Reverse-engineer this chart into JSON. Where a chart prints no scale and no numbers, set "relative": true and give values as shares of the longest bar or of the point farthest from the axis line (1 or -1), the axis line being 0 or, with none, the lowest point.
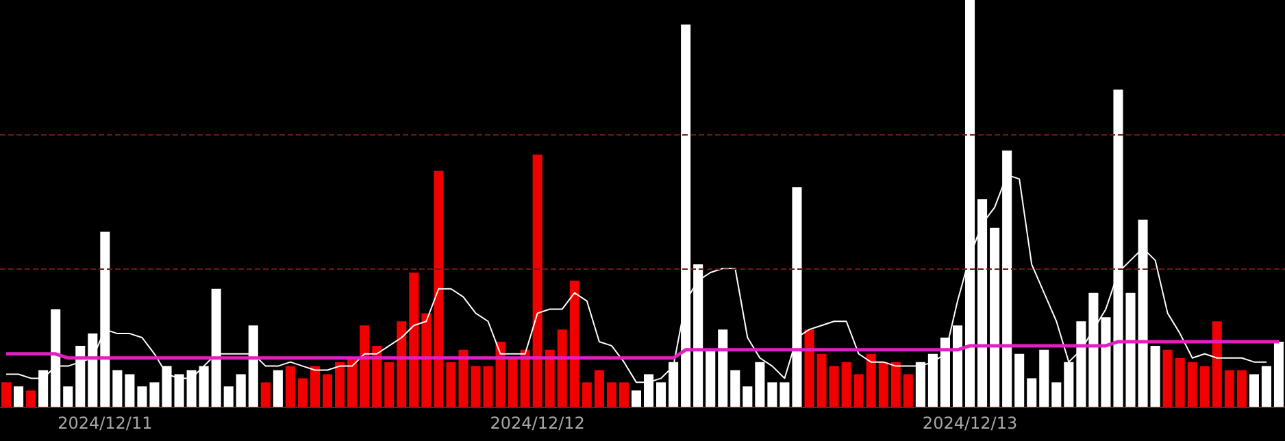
{
  "chart_data": {
    "type": "bar",
    "relative": true,
    "categories": [
      null,
      null,
      null,
      null,
      null,
      null,
      null,
      null,
      "2024/12/11",
      null,
      null,
      null,
      null,
      null,
      null,
      null,
      null,
      null,
      null,
      null,
      null,
      null,
      null,
      null,
      null,
      null,
      null,
      null,
      null,
      null,
      null,
      null,
      null,
      null,
      null,
      null,
      null,
      null,
      null,
      null,
      null,
      null,
      null,
      "2024/12/12",
      null,
      null,
      null,
      null,
      null,
      null,
      null,
      null,
      null,
      null,
      null,
      null,
      null,
      null,
      null,
      null,
      null,
      null,
      null,
      null,
      null,
      null,
      null,
      null,
      null,
      null,
      null,
      null,
      null,
      null,
      null,
      null,
      null,
      null,
      "2024/12/13",
      null,
      null,
      null,
      null,
      null,
      null,
      null,
      null,
      null,
      null,
      null,
      null,
      null,
      null,
      null,
      null,
      null,
      null,
      null,
      null,
      null,
      null,
      null,
      null,
      null
    ],
    "series": [
      {
        "values": [
          0.06,
          0.05,
          0.04,
          0.09,
          0.24,
          0.05,
          0.15,
          0.18,
          0.43,
          0.09,
          0.08,
          0.05,
          0.06,
          0.1,
          0.08,
          0.09,
          0.1,
          0.29,
          0.05,
          0.08,
          0.2,
          0.06,
          0.09,
          0.1,
          0.07,
          0.1,
          0.08,
          0.11,
          0.12,
          0.2,
          0.15,
          0.11,
          0.21,
          0.33,
          0.23,
          0.58,
          0.11,
          0.14,
          0.1,
          0.1,
          0.16,
          0.12,
          0.14,
          0.62,
          0.14,
          0.19,
          0.31,
          0.06,
          0.09,
          0.06,
          0.06,
          0.04,
          0.08,
          0.06,
          0.11,
          0.94,
          0.35,
          0.14,
          0.19,
          0.09,
          0.05,
          0.11,
          0.06,
          0.06,
          0.54,
          0.19,
          0.13,
          0.1,
          0.11,
          0.08,
          0.13,
          0.11,
          0.11,
          0.08,
          0.11,
          0.13,
          0.17,
          0.2,
          1,
          0.51,
          0.44,
          0.63,
          0.13,
          0.07,
          0.14,
          0.06,
          0.11,
          0.21,
          0.28,
          0.22,
          0.78,
          0.28,
          0.46,
          0.15,
          0.14,
          0.12,
          0.11,
          0.1,
          0.21,
          0.09,
          0.09,
          0.08,
          0.1,
          0.16
        ],
        "colors": [
          "#f00000",
          "#ffffff",
          "#f00000",
          "#ffffff",
          "#ffffff",
          "#ffffff",
          "#ffffff",
          "#ffffff",
          "#ffffff",
          "#ffffff",
          "#ffffff",
          "#ffffff",
          "#ffffff",
          "#ffffff",
          "#ffffff",
          "#ffffff",
          "#ffffff",
          "#ffffff",
          "#ffffff",
          "#ffffff",
          "#ffffff",
          "#f00000",
          "#ffffff",
          "#f00000",
          "#f00000",
          "#f00000",
          "#f00000",
          "#f00000",
          "#f00000",
          "#f00000",
          "#f00000",
          "#f00000",
          "#f00000",
          "#f00000",
          "#f00000",
          "#f00000",
          "#f00000",
          "#f00000",
          "#f00000",
          "#f00000",
          "#f00000",
          "#f00000",
          "#f00000",
          "#f00000",
          "#f00000",
          "#f00000",
          "#f00000",
          "#f00000",
          "#f00000",
          "#f00000",
          "#f00000",
          "#ffffff",
          "#ffffff",
          "#ffffff",
          "#ffffff",
          "#ffffff",
          "#ffffff",
          "#ffffff",
          "#ffffff",
          "#ffffff",
          "#ffffff",
          "#ffffff",
          "#ffffff",
          "#ffffff",
          "#ffffff",
          "#f00000",
          "#f00000",
          "#f00000",
          "#f00000",
          "#f00000",
          "#f00000",
          "#f00000",
          "#f00000",
          "#f00000",
          "#ffffff",
          "#ffffff",
          "#ffffff",
          "#ffffff",
          "#ffffff",
          "#ffffff",
          "#ffffff",
          "#ffffff",
          "#ffffff",
          "#ffffff",
          "#ffffff",
          "#ffffff",
          "#ffffff",
          "#ffffff",
          "#ffffff",
          "#ffffff",
          "#ffffff",
          "#ffffff",
          "#ffffff",
          "#ffffff",
          "#f00000",
          "#f00000",
          "#f00000",
          "#f00000",
          "#f00000",
          "#f00000",
          "#f00000",
          "#ffffff",
          "#ffffff",
          "#ffffff"
        ]
      },
      {
        "type": "line",
        "color": "#ffffff",
        "values": [
          0.08,
          0.08,
          0.07,
          0.07,
          0.1,
          0.1,
          0.11,
          0.12,
          0.19,
          0.18,
          0.18,
          0.17,
          0.13,
          0.08,
          0.07,
          0.07,
          0.1,
          0.13,
          0.13,
          0.13,
          0.13,
          0.1,
          0.1,
          0.11,
          0.1,
          0.09,
          0.09,
          0.1,
          0.1,
          0.13,
          0.13,
          0.15,
          0.17,
          0.2,
          0.21,
          0.29,
          0.29,
          0.27,
          0.23,
          0.21,
          0.13,
          0.13,
          0.13,
          0.23,
          0.24,
          0.24,
          0.28,
          0.26,
          0.16,
          0.15,
          0.11,
          0.06,
          0.06,
          0.07,
          0.1,
          0.26,
          0.31,
          0.33,
          0.34,
          0.34,
          0.17,
          0.12,
          0.1,
          0.07,
          0.17,
          0.19,
          0.2,
          0.21,
          0.21,
          0.13,
          0.11,
          0.11,
          0.1,
          0.1,
          0.1,
          0.11,
          0.13,
          0.26,
          0.37,
          0.45,
          0.49,
          0.57,
          0.56,
          0.35,
          0.28,
          0.21,
          0.11,
          0.14,
          0.19,
          0.24,
          0.33,
          0.36,
          0.39,
          0.36,
          0.23,
          0.18,
          0.12,
          0.13,
          0.12,
          0.12,
          0.12,
          0.11,
          0.11,
          null
        ]
      },
      {
        "type": "line",
        "color": "#e020c0",
        "values": [
          0.13,
          0.13,
          0.13,
          0.13,
          0.13,
          0.12,
          0.12,
          0.12,
          0.12,
          0.12,
          0.12,
          0.12,
          0.12,
          0.12,
          0.12,
          0.12,
          0.12,
          0.12,
          0.12,
          0.12,
          0.12,
          0.12,
          0.12,
          0.12,
          0.12,
          0.12,
          0.12,
          0.12,
          0.12,
          0.12,
          0.12,
          0.12,
          0.12,
          0.12,
          0.12,
          0.12,
          0.12,
          0.12,
          0.12,
          0.12,
          0.12,
          0.12,
          0.12,
          0.12,
          0.12,
          0.12,
          0.12,
          0.12,
          0.12,
          0.12,
          0.12,
          0.12,
          0.12,
          0.12,
          0.12,
          0.14,
          0.14,
          0.14,
          0.14,
          0.14,
          0.14,
          0.14,
          0.14,
          0.14,
          0.14,
          0.14,
          0.14,
          0.14,
          0.14,
          0.14,
          0.14,
          0.14,
          0.14,
          0.14,
          0.14,
          0.14,
          0.14,
          0.14,
          0.15,
          0.15,
          0.15,
          0.15,
          0.15,
          0.15,
          0.15,
          0.15,
          0.15,
          0.15,
          0.15,
          0.15,
          0.16,
          0.16,
          0.16,
          0.16,
          0.16,
          0.16,
          0.16,
          0.16,
          0.16,
          0.16,
          0.16,
          0.16,
          0.16,
          0.16
        ]
      }
    ],
    "ref_lines": [
      {
        "axis": "y",
        "value": 0.34,
        "color": "#6a1a1a",
        "line_style": "dashed"
      },
      {
        "axis": "y",
        "value": 0.67,
        "color": "#6a1a1a",
        "line_style": "dashed"
      }
    ],
    "marker": "none",
    "line_style": "solid"
  }
}
